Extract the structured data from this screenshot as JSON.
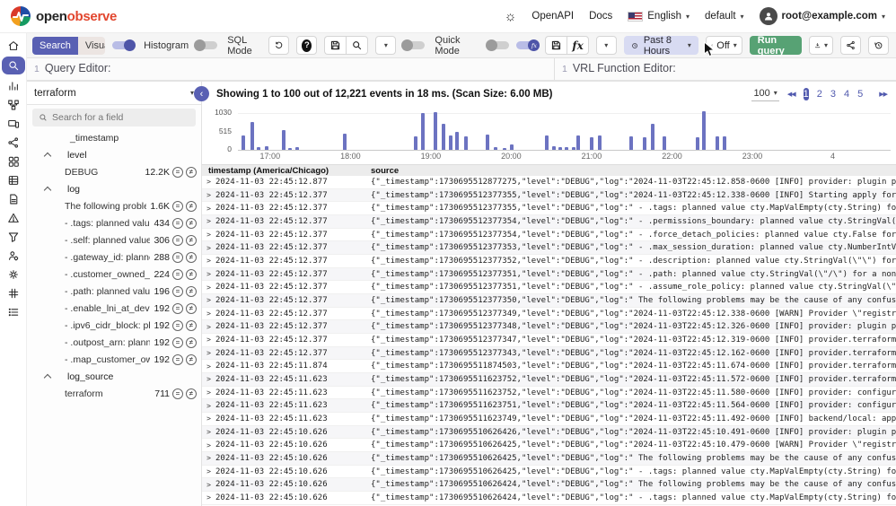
{
  "topbar": {
    "brand_open": "open",
    "brand_observe": "observe",
    "openapi_label": "OpenAPI",
    "docs_label": "Docs",
    "language": "English",
    "org": "default",
    "user_email": "root@example.com"
  },
  "toolbar": {
    "search_tab": "Search",
    "visualize_tab": "Visualize",
    "histogram_label": "Histogram",
    "sql_mode_label": "SQL Mode",
    "quick_mode_label": "Quick Mode",
    "time_range": "Past 8 Hours",
    "auto_refresh": "Off",
    "run_query": "Run query"
  },
  "editors": {
    "query_line": "1",
    "query_placeholder": "Query Editor:",
    "vrl_line": "1",
    "vrl_placeholder": "VRL Function Editor:"
  },
  "sidebar": {
    "items": [
      {
        "name": "home",
        "active": false
      },
      {
        "name": "search",
        "active": true
      },
      {
        "name": "metrics",
        "active": false
      },
      {
        "name": "traces",
        "active": false
      },
      {
        "name": "rum",
        "active": false
      },
      {
        "name": "pipelines",
        "active": false
      },
      {
        "name": "dashboards",
        "active": false
      },
      {
        "name": "streams",
        "active": false
      },
      {
        "name": "reports",
        "active": false
      },
      {
        "name": "alerts",
        "active": false
      },
      {
        "name": "data",
        "active": false
      },
      {
        "name": "iam",
        "active": false
      },
      {
        "name": "settings",
        "active": false
      },
      {
        "name": "slack",
        "active": false
      },
      {
        "name": "about",
        "active": false
      }
    ]
  },
  "fields_panel": {
    "stream": "terraform",
    "search_placeholder": "Search for a field",
    "timestamp_field": "_timestamp",
    "groups": [
      {
        "name": "level",
        "values": [
          {
            "label": "DEBUG",
            "count": "12.2K"
          }
        ]
      },
      {
        "name": "log",
        "values": [
          {
            "label": "The following problems may ...",
            "count": "1.6K"
          },
          {
            "label": "- .tags: planned value cty.Map...",
            "count": "434"
          },
          {
            "label": "- .self: planned value cty.False...",
            "count": "306"
          },
          {
            "label": "- .gateway_id: planned value c...",
            "count": "288"
          },
          {
            "label": "- .customer_owned_ipv4_pool...",
            "count": "224"
          },
          {
            "label": "- .path: planned value cty.Stri...",
            "count": "196"
          },
          {
            "label": "- .enable_lni_at_device_index:...",
            "count": "192"
          },
          {
            "label": "- .ipv6_cidr_block: planned val...",
            "count": "192"
          },
          {
            "label": "- .outpost_arn: planned value ...",
            "count": "192"
          },
          {
            "label": "- .map_customer_owned_ip_o...",
            "count": "192"
          }
        ]
      },
      {
        "name": "log_source",
        "values": [
          {
            "label": "terraform",
            "count": "711"
          }
        ]
      }
    ]
  },
  "results": {
    "summary": "Showing 1 to 100 out of 12,221 events in 18 ms. (Scan Size: 6.00 MB)",
    "page_size": "100",
    "pages": [
      "1",
      "2",
      "3",
      "4",
      "5"
    ],
    "active_page": "1"
  },
  "chart_data": {
    "type": "bar",
    "title": "",
    "xlabel": "",
    "ylabel": "",
    "ylim": [
      0,
      1030
    ],
    "y_ticks": [
      0,
      515,
      1030
    ],
    "grid": true,
    "legend": false,
    "axis_range_hours": [
      16.6,
      24.72
    ],
    "x_ticks": [
      {
        "label": "17:00",
        "hour": 17
      },
      {
        "label": "18:00",
        "hour": 18
      },
      {
        "label": "19:00",
        "hour": 19
      },
      {
        "label": "20:00",
        "hour": 20
      },
      {
        "label": "21:00",
        "hour": 21
      },
      {
        "label": "22:00",
        "hour": 22
      },
      {
        "label": "23:00",
        "hour": 23
      },
      {
        "label": "4",
        "hour": 24
      }
    ],
    "points": [
      {
        "hour": 16.65,
        "value": 370
      },
      {
        "hour": 16.76,
        "value": 700
      },
      {
        "hour": 16.84,
        "value": 60
      },
      {
        "hour": 16.93,
        "value": 95
      },
      {
        "hour": 17.15,
        "value": 515
      },
      {
        "hour": 17.23,
        "value": 50
      },
      {
        "hour": 17.31,
        "value": 60
      },
      {
        "hour": 17.91,
        "value": 420
      },
      {
        "hour": 18.79,
        "value": 345
      },
      {
        "hour": 18.88,
        "value": 950
      },
      {
        "hour": 19.04,
        "value": 970
      },
      {
        "hour": 19.13,
        "value": 660
      },
      {
        "hour": 19.23,
        "value": 370
      },
      {
        "hour": 19.3,
        "value": 455
      },
      {
        "hour": 19.41,
        "value": 355
      },
      {
        "hour": 19.68,
        "value": 380
      },
      {
        "hour": 19.78,
        "value": 80
      },
      {
        "hour": 19.89,
        "value": 40
      },
      {
        "hour": 19.98,
        "value": 130
      },
      {
        "hour": 20.42,
        "value": 370
      },
      {
        "hour": 20.51,
        "value": 100
      },
      {
        "hour": 20.59,
        "value": 65
      },
      {
        "hour": 20.67,
        "value": 65
      },
      {
        "hour": 20.75,
        "value": 80
      },
      {
        "hour": 20.81,
        "value": 370
      },
      {
        "hour": 20.98,
        "value": 330
      },
      {
        "hour": 21.08,
        "value": 370
      },
      {
        "hour": 21.47,
        "value": 345
      },
      {
        "hour": 21.64,
        "value": 330
      },
      {
        "hour": 21.74,
        "value": 660
      },
      {
        "hour": 21.88,
        "value": 345
      },
      {
        "hour": 22.3,
        "value": 310
      },
      {
        "hour": 22.37,
        "value": 990
      },
      {
        "hour": 22.54,
        "value": 345
      },
      {
        "hour": 22.63,
        "value": 345
      }
    ]
  },
  "table": {
    "columns": {
      "timestamp": "timestamp (America/Chicago)",
      "source": "source"
    },
    "rows": [
      {
        "ts": "2024-11-03 22:45:12.877",
        "source": "{\"_timestamp\":1730695512877275,\"level\":\"DEBUG\",\"log\":\"2024-11-03T22:45:12.858-0600 [INFO] provider: plugin process exited: p"
      },
      {
        "ts": "2024-11-03 22:45:12.377",
        "source": "{\"_timestamp\":1730695512377355,\"level\":\"DEBUG\",\"log\":\"2024-11-03T22:45:12.338-0600 [INFO] Starting apply for aws_iam_role.op"
      },
      {
        "ts": "2024-11-03 22:45:12.377",
        "source": "{\"_timestamp\":1730695512377355,\"level\":\"DEBUG\",\"log\":\" - .tags: planned value cty.MapValEmpty(cty.String) for a non-compute"
      },
      {
        "ts": "2024-11-03 22:45:12.377",
        "source": "{\"_timestamp\":1730695512377354,\"level\":\"DEBUG\",\"log\":\" - .permissions_boundary: planned value cty.StringVal(\\\"\\\") for a non-"
      },
      {
        "ts": "2024-11-03 22:45:12.377",
        "source": "{\"_timestamp\":1730695512377354,\"level\":\"DEBUG\",\"log\":\" - .force_detach_policies: planned value cty.False for a non-computed"
      },
      {
        "ts": "2024-11-03 22:45:12.377",
        "source": "{\"_timestamp\":1730695512377353,\"level\":\"DEBUG\",\"log\":\" - .max_session_duration: planned value cty.NumberIntVal(3600) for a"
      },
      {
        "ts": "2024-11-03 22:45:12.377",
        "source": "{\"_timestamp\":1730695512377352,\"level\":\"DEBUG\",\"log\":\" - .description: planned value cty.StringVal(\\\"\\\") for a non-computed"
      },
      {
        "ts": "2024-11-03 22:45:12.377",
        "source": "{\"_timestamp\":1730695512377351,\"level\":\"DEBUG\",\"log\":\" - .path: planned value cty.StringVal(\\\"/\\\") for a non-computed attri"
      },
      {
        "ts": "2024-11-03 22:45:12.377",
        "source": "{\"_timestamp\":1730695512377351,\"level\":\"DEBUG\",\"log\":\" - .assume_role_policy: planned value cty.StringVal(\\\"{\\\\\\\"Statement\\"
      },
      {
        "ts": "2024-11-03 22:45:12.377",
        "source": "{\"_timestamp\":1730695512377350,\"level\":\"DEBUG\",\"log\":\" The following problems may be the cause of any confusing errors from"
      },
      {
        "ts": "2024-11-03 22:45:12.377",
        "source": "{\"_timestamp\":1730695512377349,\"level\":\"DEBUG\",\"log\":\"2024-11-03T22:45:12.338-0600 [WARN] Provider \\\"registry.terraform.io/"
      },
      {
        "ts": "2024-11-03 22:45:12.377",
        "source": "{\"_timestamp\":1730695512377348,\"level\":\"DEBUG\",\"log\":\"2024-11-03T22:45:12.326-0600 [INFO] provider: plugin process exited:"
      },
      {
        "ts": "2024-11-03 22:45:12.377",
        "source": "{\"_timestamp\":1730695512377347,\"level\":\"DEBUG\",\"log\":\"2024-11-03T22:45:12.319-0600 [INFO] provider.terraform-provider-aws_v"
      },
      {
        "ts": "2024-11-03 22:45:12.377",
        "source": "{\"_timestamp\":1730695512377343,\"level\":\"DEBUG\",\"log\":\"2024-11-03T22:45:12.162-0600 [INFO] provider.terraform-provider-aws_v"
      },
      {
        "ts": "2024-11-03 22:45:11.874",
        "source": "{\"_timestamp\":1730695511874503,\"level\":\"DEBUG\",\"log\":\"2024-11-03T22:45:11.674-0600 [INFO] provider.terraform-provider-aws_v"
      },
      {
        "ts": "2024-11-03 22:45:11.623",
        "source": "{\"_timestamp\":1730695511623752,\"level\":\"DEBUG\",\"log\":\"2024-11-03T22:45:11.572-0600 [INFO] provider.terraform-provider-tls_v"
      },
      {
        "ts": "2024-11-03 22:45:11.623",
        "source": "{\"_timestamp\":1730695511623752,\"level\":\"DEBUG\",\"log\":\"2024-11-03T22:45:11.580-0600 [INFO] provider: configuring client auto"
      },
      {
        "ts": "2024-11-03 22:45:11.623",
        "source": "{\"_timestamp\":1730695511623751,\"level\":\"DEBUG\",\"log\":\"2024-11-03T22:45:11.564-0600 [INFO] provider: configuring client auto"
      },
      {
        "ts": "2024-11-03 22:45:11.623",
        "source": "{\"_timestamp\":1730695511623749,\"level\":\"DEBUG\",\"log\":\"2024-11-03T22:45:11.492-0600 [INFO] backend/local: apply calling Appl"
      },
      {
        "ts": "2024-11-03 22:45:10.626",
        "source": "{\"_timestamp\":1730695510626426,\"level\":\"DEBUG\",\"log\":\"2024-11-03T22:45:10.491-0600 [INFO] provider: plugin process exited:"
      },
      {
        "ts": "2024-11-03 22:45:10.626",
        "source": "{\"_timestamp\":1730695510626425,\"level\":\"DEBUG\",\"log\":\"2024-11-03T22:45:10.479-0600 [WARN] Provider \\\"registry.terraform.io/"
      },
      {
        "ts": "2024-11-03 22:45:10.626",
        "source": "{\"_timestamp\":1730695510626425,\"level\":\"DEBUG\",\"log\":\" The following problems may be the cause of any confusing errors from"
      },
      {
        "ts": "2024-11-03 22:45:10.626",
        "source": "{\"_timestamp\":1730695510626425,\"level\":\"DEBUG\",\"log\":\" - .tags: planned value cty.MapValEmpty(cty.String) for a non-compute"
      },
      {
        "ts": "2024-11-03 22:45:10.626",
        "source": "{\"_timestamp\":1730695510626424,\"level\":\"DEBUG\",\"log\":\" The following problems may be the cause of any confusing errors from"
      },
      {
        "ts": "2024-11-03 22:45:10.626",
        "source": "{\"_timestamp\":1730695510626424,\"level\":\"DEBUG\",\"log\":\" - .tags: planned value cty.MapValEmpty(cty.String) for a non-compute"
      }
    ]
  },
  "colors": {
    "accent_indigo": "#5960b3",
    "histogram_bar": "#6c73c1",
    "run_query_green": "#57a274",
    "time_chip_bg": "#d8dbf2"
  }
}
